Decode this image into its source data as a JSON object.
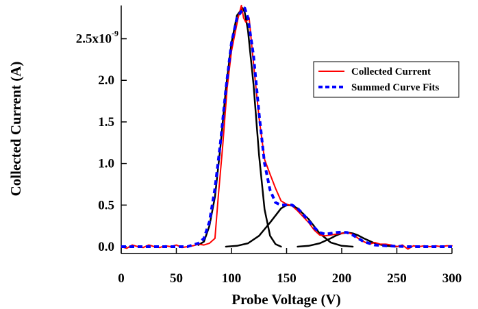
{
  "chart_data": {
    "type": "line",
    "xlabel": "Probe Voltage (V)",
    "ylabel": "Collected Current (A)",
    "xlim": [
      0,
      300
    ],
    "ylim": [
      0,
      2.9e-09
    ],
    "x_ticks": [
      0,
      50,
      100,
      150,
      200,
      250,
      300
    ],
    "x_tick_labels": [
      "0",
      "50",
      "100",
      "150",
      "200",
      "250",
      "300"
    ],
    "y_ticks": [
      0,
      5e-10,
      1e-09,
      1.5e-09,
      2e-09,
      2.5e-09
    ],
    "y_tick_labels": [
      "0.0",
      "0.5",
      "1.0",
      "1.5",
      "2.0",
      "2.5x10"
    ],
    "y_exponent_label": "-9",
    "grid": false,
    "legend_position": "top-right",
    "series": [
      {
        "name": "Collected Current",
        "style": "solid",
        "color": "#ff0000",
        "x": [
          0,
          5,
          10,
          15,
          20,
          25,
          30,
          35,
          40,
          45,
          50,
          55,
          60,
          65,
          70,
          75,
          80,
          85,
          88,
          92,
          96,
          100,
          103,
          106,
          109,
          111,
          113,
          116,
          120,
          125,
          130,
          135,
          140,
          145,
          150,
          155,
          160,
          165,
          170,
          175,
          180,
          185,
          190,
          195,
          200,
          205,
          210,
          215,
          220,
          225,
          230,
          235,
          240,
          245,
          250,
          255,
          260,
          265,
          270,
          275,
          280,
          285,
          290,
          295,
          300
        ],
        "y": [
          0,
          -2e-11,
          2e-11,
          0,
          -1e-11,
          2e-11,
          0,
          -1e-11,
          1e-11,
          0,
          2e-11,
          -1e-11,
          0,
          1e-11,
          3e-11,
          2e-11,
          4e-11,
          1e-10,
          6e-10,
          1.2e-09,
          1.9e-09,
          2.35e-09,
          2.55e-09,
          2.75e-09,
          2.9e-09,
          2.75e-09,
          2.7e-09,
          2.75e-09,
          2.2e-09,
          1.55e-09,
          1.05e-09,
          8.7e-10,
          7e-10,
          5.5e-10,
          5.1e-10,
          4.9e-10,
          4.3e-10,
          3.6e-10,
          2.9e-10,
          2e-10,
          1.4e-10,
          1.3e-10,
          1.4e-10,
          1.5e-10,
          1.6e-10,
          1.7e-10,
          1.5e-10,
          1e-10,
          6e-11,
          3e-11,
          5e-11,
          3e-11,
          3e-11,
          2e-11,
          0,
          2e-11,
          -3e-11,
          1e-11,
          0,
          1e-11,
          0,
          1e-11,
          0,
          1e-11,
          1e-11
        ]
      },
      {
        "name": "Summed Curve Fits",
        "style": "dashed",
        "color": "#0000ff",
        "x": [
          0,
          20,
          40,
          60,
          70,
          75,
          80,
          85,
          90,
          95,
          100,
          105,
          110,
          112,
          115,
          120,
          125,
          130,
          135,
          140,
          145,
          150,
          155,
          160,
          165,
          170,
          175,
          180,
          185,
          190,
          195,
          200,
          205,
          210,
          215,
          220,
          230,
          240,
          260,
          280,
          300
        ],
        "y": [
          0,
          0,
          0,
          0,
          4e-11,
          1e-10,
          3e-10,
          7e-10,
          1.25e-09,
          1.9e-09,
          2.45e-09,
          2.75e-09,
          2.85e-09,
          2.87e-09,
          2.75e-09,
          2.3e-09,
          1.6e-09,
          1e-09,
          6.8e-10,
          5.3e-10,
          5e-10,
          5e-10,
          5e-10,
          4.6e-10,
          3.9e-10,
          3.1e-10,
          2.3e-10,
          1.7e-10,
          1.5e-10,
          1.6e-10,
          1.7e-10,
          1.75e-10,
          1.7e-10,
          1.4e-10,
          1e-10,
          6e-11,
          2e-11,
          1e-11,
          0,
          0,
          0
        ]
      },
      {
        "style": "solid",
        "color": "#000000",
        "x": [
          70,
          75,
          80,
          85,
          90,
          95,
          100,
          105,
          110,
          112,
          115,
          120,
          125,
          130,
          135,
          140,
          145
        ],
        "y": [
          2e-11,
          6e-11,
          2.5e-10,
          6e-10,
          1.2e-09,
          1.9e-09,
          2.45e-09,
          2.78e-09,
          2.87e-09,
          2.82e-09,
          2.6e-09,
          1.95e-09,
          1.1e-09,
          4.5e-10,
          1.3e-10,
          3e-11,
          0
        ]
      },
      {
        "style": "solid",
        "color": "#000000",
        "x": [
          95,
          105,
          115,
          125,
          135,
          145,
          150,
          155,
          160,
          170,
          180,
          190,
          200,
          210
        ],
        "y": [
          0,
          1e-11,
          4e-11,
          1.3e-10,
          2.9e-10,
          4.6e-10,
          5e-10,
          4.95e-10,
          4.6e-10,
          3.3e-10,
          1.6e-10,
          5e-11,
          1e-11,
          0
        ]
      },
      {
        "style": "solid",
        "color": "#000000",
        "x": [
          160,
          170,
          180,
          190,
          195,
          200,
          205,
          210,
          215,
          220,
          230,
          240,
          250
        ],
        "y": [
          0,
          1e-11,
          4e-11,
          1e-10,
          1.35e-10,
          1.6e-10,
          1.7e-10,
          1.6e-10,
          1.35e-10,
          1e-10,
          4e-11,
          1e-11,
          0
        ]
      }
    ]
  }
}
